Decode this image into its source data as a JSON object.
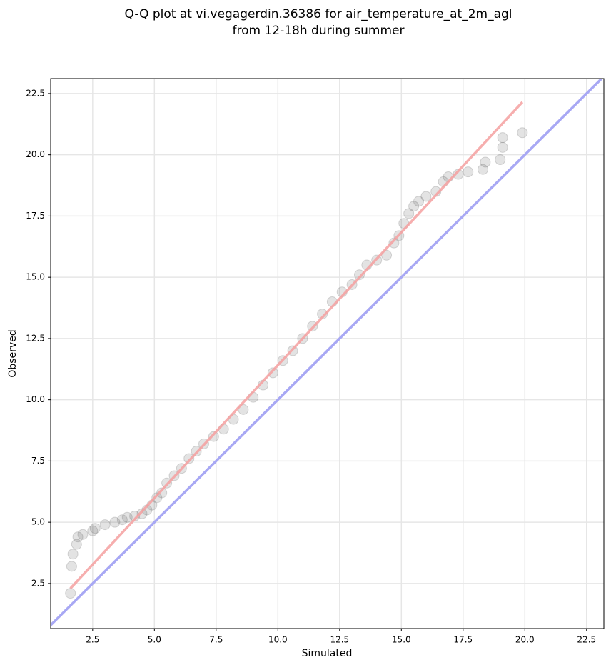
{
  "chart_data": {
    "type": "scatter",
    "title": [
      "Q-Q plot at vi.vegagerdin.36386 for air_temperature_at_2m_agl",
      "from 12-18h during summer"
    ],
    "xlabel": "Simulated",
    "ylabel": "Observed",
    "x": [
      1.6,
      1.65,
      1.7,
      1.85,
      1.9,
      2.1,
      2.5,
      2.6,
      3.0,
      3.4,
      3.7,
      3.9,
      4.2,
      4.5,
      4.7,
      4.9,
      5.1,
      5.3,
      5.5,
      5.8,
      6.1,
      6.4,
      6.7,
      7.0,
      7.4,
      7.8,
      8.2,
      8.6,
      9.0,
      9.4,
      9.8,
      10.2,
      10.6,
      11.0,
      11.4,
      11.8,
      12.2,
      12.6,
      13.0,
      13.3,
      13.6,
      14.0,
      14.4,
      14.7,
      14.9,
      15.1,
      15.3,
      15.5,
      15.7,
      16.0,
      16.4,
      16.7,
      16.9,
      17.3,
      17.7,
      18.3,
      18.4,
      19.0,
      19.1,
      19.1,
      19.9
    ],
    "values": [
      2.1,
      3.2,
      3.7,
      4.1,
      4.4,
      4.5,
      4.65,
      4.75,
      4.9,
      5.0,
      5.1,
      5.2,
      5.25,
      5.35,
      5.5,
      5.7,
      6.0,
      6.2,
      6.6,
      6.9,
      7.2,
      7.6,
      7.9,
      8.2,
      8.5,
      8.8,
      9.2,
      9.6,
      10.1,
      10.6,
      11.1,
      11.6,
      12.0,
      12.5,
      13.0,
      13.5,
      14.0,
      14.4,
      14.7,
      15.1,
      15.5,
      15.7,
      15.9,
      16.4,
      16.7,
      17.2,
      17.6,
      17.9,
      18.1,
      18.3,
      18.5,
      18.9,
      19.1,
      19.2,
      19.3,
      19.4,
      19.7,
      19.8,
      20.3,
      20.7,
      20.9
    ],
    "color": "#444444",
    "fit_line": {
      "x": [
        1.6,
        19.9
      ],
      "values": [
        2.3,
        22.15
      ],
      "color": "#f4a0a0"
    },
    "reference_color": "#a8a8f4",
    "xlim": [
      0.8,
      23.2
    ],
    "ylim": [
      0.66,
      23.11
    ],
    "xticks": [
      2.5,
      {
        "value": 5,
        "label": "5.0"
      },
      7.5,
      {
        "value": 10,
        "label": "10.0"
      },
      12.5,
      {
        "value": 15,
        "label": "15.0"
      },
      17.5,
      {
        "value": 20,
        "label": "20.0"
      },
      22.5
    ],
    "yticks": [
      2.5,
      {
        "value": 5,
        "label": "5.0"
      },
      7.5,
      {
        "value": 10,
        "label": "10.0"
      },
      12.5,
      {
        "value": 15,
        "label": "15.0"
      },
      17.5,
      {
        "value": 20,
        "label": "20.0"
      },
      22.5
    ],
    "grid": true
  }
}
